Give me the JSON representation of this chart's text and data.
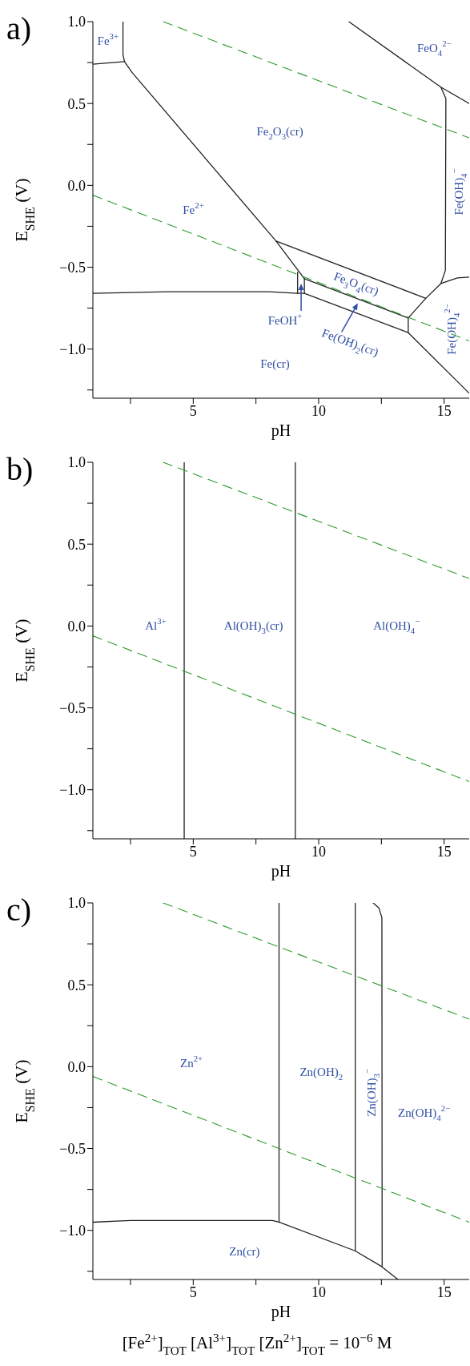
{
  "chart_data": [
    {
      "type": "line",
      "title": "a)",
      "xlabel": "pH",
      "ylabel": "E$_{SHE}$  (V)",
      "xlim": [
        1,
        16
      ],
      "ylim": [
        -1.3,
        1.0
      ],
      "xticks": [
        {
          "value": 2.5,
          "label": null
        },
        5,
        {
          "value": 7.5,
          "label": null
        },
        10,
        {
          "value": 12.5,
          "label": null
        },
        15
      ],
      "yticks": [
        {
          "value": -1.25,
          "label": null
        },
        {
          "value": -1.0,
          "label": "−1.0"
        },
        {
          "value": -0.75,
          "label": null
        },
        {
          "value": -0.5,
          "label": "−0.5"
        },
        {
          "value": -0.25,
          "label": null
        },
        {
          "value": 0,
          "label": "0.0"
        },
        {
          "value": 0.25,
          "label": null
        },
        {
          "value": 0.5,
          "label": "0.5"
        },
        {
          "value": 0.75,
          "label": null
        },
        {
          "value": 1.0,
          "label": "1.0"
        }
      ],
      "series": [
        {
          "color": "#222222",
          "x": [
            2.2,
            2.2,
            2.26,
            2.56,
            8.3,
            9.43,
            13.57,
            13.57,
            16
          ],
          "values": [
            1.0,
            0.8,
            0.756,
            0.69,
            -0.34,
            -0.57,
            -0.81,
            -0.9,
            -1.27
          ]
        },
        {
          "color": "#222222",
          "x": [
            1,
            4,
            8,
            9.16,
            9.43,
            13.57
          ],
          "values": [
            -0.66,
            -0.65,
            -0.65,
            -0.66,
            -0.66,
            -0.9
          ]
        },
        {
          "color": "#222222",
          "x": [
            1,
            2.26
          ],
          "values": [
            0.74,
            0.756
          ]
        },
        {
          "color": "#222222",
          "x": [
            8.3,
            14.27,
            14.87,
            15.05,
            15.07,
            14.87,
            11.2
          ],
          "values": [
            -0.34,
            -0.69,
            -0.6,
            -0.52,
            0.53,
            0.6,
            1.0
          ]
        },
        {
          "color": "#222222",
          "x": [
            9.16,
            9.16
          ],
          "values": [
            -0.53,
            -0.66
          ]
        },
        {
          "color": "#222222",
          "x": [
            9.43,
            9.43
          ],
          "values": [
            -0.57,
            -0.66
          ]
        },
        {
          "color": "#222222",
          "x": [
            13.57,
            14.27
          ],
          "values": [
            -0.81,
            -0.69
          ]
        },
        {
          "color": "#222222",
          "x": [
            14.87,
            15.53,
            16
          ],
          "values": [
            -0.6,
            -0.565,
            -0.56
          ]
        },
        {
          "color": "#222222",
          "x": [
            14.87,
            16
          ],
          "values": [
            0.6,
            0.5
          ]
        },
        {
          "color": "#2a9a2a",
          "line_style": "dashed",
          "x": [
            3.8,
            16
          ],
          "values": [
            1.0,
            0.29
          ]
        },
        {
          "color": "#2a9a2a",
          "line_style": "dashed",
          "x": [
            1,
            16
          ],
          "values": [
            -0.06,
            -0.95
          ]
        }
      ],
      "annotations": [
        "Fe$^{3+}$",
        "FeO$_{4}$$^{2−}$",
        "Fe$_{2}$O$_{3}$(cr)",
        "Fe(OH)$_{4}$$^{−}$",
        "Fe$^{2+}$",
        "Fe$_{3}$O$_{4}$(cr)",
        {
          "text": "FeOH$^{+}$",
          "x": 9.3,
          "y": -0.6
        },
        "Fe(OH)$_{2}$(cr)",
        "Fe(OH)$_{4}$$^{2−}$",
        "Fe(cr)"
      ]
    },
    {
      "type": "line",
      "title": "b)",
      "xlabel": "pH",
      "ylabel": "E$_{SHE}$  (V)",
      "xlim": [
        1,
        16
      ],
      "ylim": [
        -1.3,
        1.0
      ],
      "xticks": [
        {
          "value": 2.5,
          "label": null
        },
        5,
        {
          "value": 7.5,
          "label": null
        },
        10,
        {
          "value": 12.5,
          "label": null
        },
        15
      ],
      "yticks": [
        {
          "value": -1.25,
          "label": null
        },
        {
          "value": -1.0,
          "label": "−1.0"
        },
        {
          "value": -0.75,
          "label": null
        },
        {
          "value": -0.5,
          "label": "−0.5"
        },
        {
          "value": -0.25,
          "label": null
        },
        {
          "value": 0,
          "label": "0.0"
        },
        {
          "value": 0.25,
          "label": null
        },
        {
          "value": 0.5,
          "label": "0.5"
        },
        {
          "value": 0.75,
          "label": null
        },
        {
          "value": 1.0,
          "label": "1.0"
        }
      ],
      "series": [
        {
          "color": "#222222",
          "x": [
            4.64,
            4.64
          ],
          "values": [
            -1.3,
            1.0
          ]
        },
        {
          "color": "#222222",
          "x": [
            9.07,
            9.07
          ],
          "values": [
            -1.3,
            1.0
          ]
        },
        {
          "color": "#2a9a2a",
          "line_style": "dashed",
          "x": [
            3.8,
            16
          ],
          "values": [
            1.0,
            0.29
          ]
        },
        {
          "color": "#2a9a2a",
          "line_style": "dashed",
          "x": [
            1,
            16
          ],
          "values": [
            -0.06,
            -0.95
          ]
        }
      ],
      "annotations": [
        "Al$^{3+}$",
        "Al(OH)$_{3}$(cr)",
        "Al(OH)$_{4}$$^{−}$"
      ]
    },
    {
      "type": "line",
      "title": "c)",
      "xlabel": "pH",
      "ylabel": "E$_{SHE}$  (V)",
      "xlim": [
        1,
        16
      ],
      "ylim": [
        -1.3,
        1.0
      ],
      "xticks": [
        {
          "value": 2.5,
          "label": null
        },
        5,
        {
          "value": 7.5,
          "label": null
        },
        10,
        {
          "value": 12.5,
          "label": null
        },
        15
      ],
      "yticks": [
        {
          "value": -1.25,
          "label": null
        },
        {
          "value": -1.0,
          "label": "−1.0"
        },
        {
          "value": -0.75,
          "label": null
        },
        {
          "value": -0.5,
          "label": "−0.5"
        },
        {
          "value": -0.25,
          "label": null
        },
        {
          "value": 0,
          "label": "0.0"
        },
        {
          "value": 0.25,
          "label": null
        },
        {
          "value": 0.5,
          "label": "0.5"
        },
        {
          "value": 0.75,
          "label": null
        },
        {
          "value": 1.0,
          "label": "1.0"
        }
      ],
      "series": [
        {
          "color": "#222222",
          "x": [
            8.42,
            8.42
          ],
          "values": [
            1.0,
            -0.95
          ]
        },
        {
          "color": "#222222",
          "x": [
            1,
            2.5,
            8.16,
            8.42,
            11.45,
            12.5,
            13.16
          ],
          "values": [
            -0.95,
            -0.94,
            -0.94,
            -0.95,
            -1.125,
            -1.22,
            -1.3
          ]
        },
        {
          "color": "#222222",
          "x": [
            11.46,
            11.46
          ],
          "values": [
            1.0,
            -1.125
          ]
        },
        {
          "color": "#222222",
          "x": [
            12.17,
            12.4,
            12.52,
            12.53
          ],
          "values": [
            1.0,
            0.97,
            0.91,
            -1.22
          ]
        },
        {
          "color": "#2a9a2a",
          "line_style": "dashed",
          "x": [
            3.8,
            16
          ],
          "values": [
            1.0,
            0.29
          ]
        },
        {
          "color": "#2a9a2a",
          "line_style": "dashed",
          "x": [
            1,
            16
          ],
          "values": [
            -0.06,
            -0.95
          ]
        }
      ],
      "annotations": [
        "Zn$^{2+}$",
        "Zn(OH)$_{2}$",
        "Zn(OH)$_{3}$$^{−}$",
        "Zn(OH)$_{4}$$^{2−}$",
        "Zn(cr)",
        "[Fe$^{2+}$]$_{TOT}$ [Al$^{3+}$]$_{TOT}$ [Zn$^{2+}$]$_{TOT}$ = 10$^{−6}$ M"
      ]
    }
  ]
}
